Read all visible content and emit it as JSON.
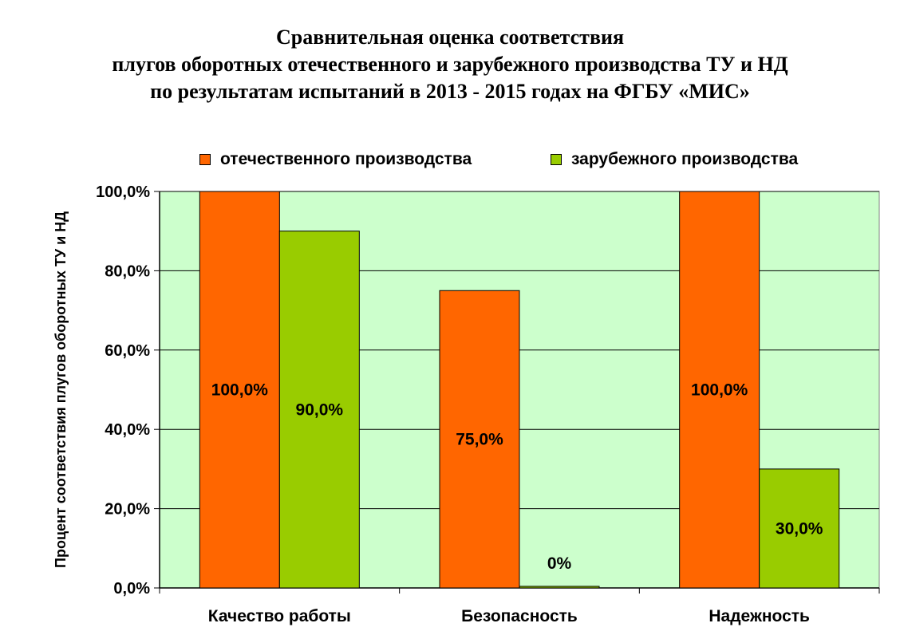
{
  "title_lines": [
    "Сравнительная оценка соответствия",
    "плугов оборотных отечественного и зарубежного производства ТУ и НД",
    "по результатам испытаний в 2013 - 2015 годах  на ФГБУ «МИС»"
  ],
  "colors": {
    "plot_bg": "#ccffcc",
    "domestic": "#ff6600",
    "foreign": "#99cc00",
    "grid": "#000000"
  },
  "chart_data": {
    "type": "bar",
    "categories": [
      "Качество работы",
      "Безопасность",
      "Надежность"
    ],
    "series": [
      {
        "name": "отечественного производства",
        "values": [
          100.0,
          75.0,
          100.0
        ],
        "labels": [
          "100,0%",
          "75,0%",
          "100,0%"
        ]
      },
      {
        "name": "зарубежного производства",
        "values": [
          90.0,
          0.0,
          30.0
        ],
        "labels": [
          "90,0%",
          "0%",
          "30,0%"
        ]
      }
    ],
    "ylabel": "Процент соответствия плугов оборотных ТУ и НД",
    "ylim": [
      0,
      100
    ],
    "yticks": [
      "0,0%",
      "20,0%",
      "40,0%",
      "60,0%",
      "80,0%",
      "100,0%"
    ],
    "grid": true,
    "legend_position": "top"
  }
}
